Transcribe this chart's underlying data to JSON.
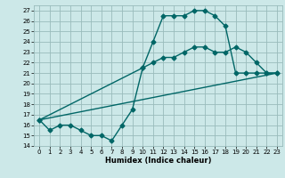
{
  "xlabel": "Humidex (Indice chaleur)",
  "bg_color": "#cce8e8",
  "grid_color": "#99bbbb",
  "line_color": "#006666",
  "xlim": [
    -0.5,
    23.5
  ],
  "ylim": [
    14,
    27.5
  ],
  "xticks": [
    0,
    1,
    2,
    3,
    4,
    5,
    6,
    7,
    8,
    9,
    10,
    11,
    12,
    13,
    14,
    15,
    16,
    17,
    18,
    19,
    20,
    21,
    22,
    23
  ],
  "yticks": [
    14,
    15,
    16,
    17,
    18,
    19,
    20,
    21,
    22,
    23,
    24,
    25,
    26,
    27
  ],
  "line1_x": [
    0,
    1,
    2,
    3,
    4,
    5,
    6,
    7,
    8,
    9,
    10,
    11,
    12,
    13,
    14,
    15,
    16,
    17,
    18,
    19,
    20,
    21,
    22,
    23
  ],
  "line1_y": [
    16.5,
    15.5,
    16,
    16,
    15.5,
    15,
    15,
    14.5,
    16,
    17.5,
    21.5,
    24,
    26.5,
    26.5,
    26.5,
    27,
    27,
    26.5,
    25.5,
    21,
    21,
    21,
    21,
    21
  ],
  "line2_x": [
    0,
    10,
    11,
    12,
    13,
    14,
    15,
    16,
    17,
    18,
    19,
    20,
    21,
    22,
    23
  ],
  "line2_y": [
    16.5,
    21.5,
    22,
    22.5,
    22.5,
    23,
    23.5,
    23.5,
    23,
    23,
    23.5,
    23,
    22,
    21,
    21
  ],
  "line3_x": [
    0,
    23
  ],
  "line3_y": [
    16.5,
    21
  ],
  "marker": "D",
  "marker_size": 2.5,
  "line_width": 1.0,
  "tick_fontsize": 5.0,
  "xlabel_fontsize": 6.0
}
